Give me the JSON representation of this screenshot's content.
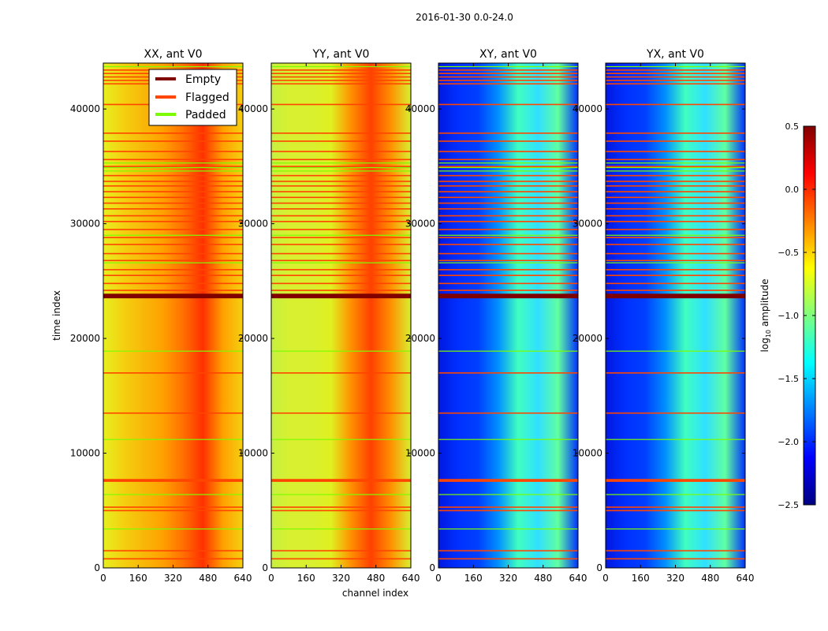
{
  "chart_data": {
    "type": "heatmap",
    "title": "2016-01-30 0.0-24.0",
    "xlabel": "channel index",
    "ylabel": "time index",
    "xlim": [
      0,
      640
    ],
    "ylim": [
      0,
      44000
    ],
    "xticks": [
      "0",
      "160",
      "320",
      "480",
      "640"
    ],
    "yticks": [
      "0",
      "10000",
      "20000",
      "30000",
      "40000"
    ],
    "panels": [
      {
        "title": "XX, ant V0",
        "base": "amplitude high",
        "palette": [
          "#e6f020",
          "#f4d010",
          "#f8b808",
          "#ffa000",
          "#ff7000",
          "#ff3000",
          "#ffa000",
          "#f4d010"
        ]
      },
      {
        "title": "YY, ant V0",
        "base": "amplitude high",
        "palette": [
          "#c8f040",
          "#d8f030",
          "#d8f030",
          "#e0f020",
          "#ff9000",
          "#ff4000",
          "#ff9000",
          "#d8f030"
        ]
      },
      {
        "title": "XY, ant V0",
        "base": "amplitude low",
        "palette": [
          "#0018e0",
          "#0030ff",
          "#0040ff",
          "#0090ff",
          "#40ffc0",
          "#30e0ff",
          "#60ffa0",
          "#0030ff"
        ]
      },
      {
        "title": "YX, ant V0",
        "base": "amplitude low",
        "palette": [
          "#0018e0",
          "#0030ff",
          "#0040ff",
          "#0090ff",
          "#40ffc0",
          "#30e0ff",
          "#60ffa0",
          "#0030ff"
        ]
      }
    ],
    "legend": {
      "position": "top-right of first panel",
      "entries": [
        {
          "label": "Empty",
          "color": "#800000"
        },
        {
          "label": "Flagged",
          "color": "#ff4500"
        },
        {
          "label": "Padded",
          "color": "#7cfc00"
        }
      ]
    },
    "empty_rows": [
      [
        23500,
        23900
      ]
    ],
    "flagged_rows": [
      800,
      1500,
      5000,
      5300,
      [
        7500,
        7750
      ],
      13500,
      17000,
      24200,
      24800,
      25500,
      26000,
      26800,
      27400,
      28200,
      28800,
      29500,
      30200,
      30700,
      31300,
      31800,
      32300,
      32800,
      33300,
      33700,
      34200,
      35000,
      35600,
      36300,
      37200,
      37900,
      40400,
      42200,
      42500,
      42800,
      43100,
      43400
    ],
    "padded_rows": [
      3400,
      6400,
      11200,
      18900,
      26600,
      29000,
      34600,
      34900,
      35300,
      43700
    ],
    "colorbar": {
      "label": "log10 amplitude",
      "range": [
        -2.5,
        0.5
      ],
      "ticks": [
        "0.5",
        "0.0",
        "−0.5",
        "−1.0",
        "−1.5",
        "−2.0",
        "−2.5"
      ]
    }
  }
}
